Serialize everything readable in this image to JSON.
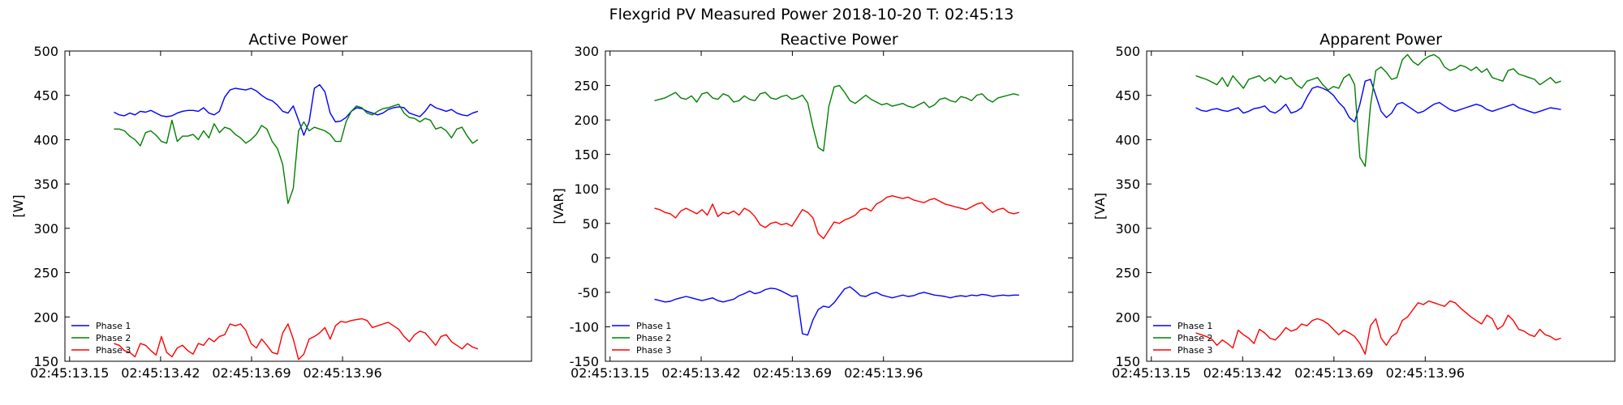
{
  "figure_title": "Flexgrid PV Measured Power 2018-10-20 T: 02:45:13",
  "chart_data": [
    {
      "type": "line",
      "title": "Active Power",
      "ylabel": "[W]",
      "xlabel": "",
      "ylim": [
        150,
        500
      ],
      "yticks": [
        150,
        200,
        250,
        300,
        350,
        400,
        450,
        500
      ],
      "xticks": [
        "02:45:13.15",
        "02:45:13.42",
        "02:45:13.69",
        "02:45:13.96"
      ],
      "grid": false,
      "legend_position": "lower-left",
      "series": [
        {
          "name": "Phase 1",
          "color": "#0000ff",
          "values": [
            431,
            428,
            427,
            430,
            428,
            432,
            431,
            433,
            430,
            427,
            426,
            427,
            430,
            432,
            433,
            433,
            432,
            436,
            430,
            428,
            432,
            448,
            456,
            458,
            457,
            456,
            458,
            455,
            450,
            446,
            444,
            439,
            432,
            430,
            438,
            422,
            405,
            420,
            458,
            462,
            454,
            430,
            420,
            421,
            425,
            432,
            436,
            435,
            432,
            430,
            428,
            430,
            434,
            436,
            437,
            436,
            430,
            428,
            426,
            432,
            440,
            436,
            434,
            432,
            434,
            430,
            428,
            427,
            430,
            432
          ]
        },
        {
          "name": "Phase 2",
          "color": "#008000",
          "values": [
            412,
            412,
            410,
            404,
            400,
            393,
            408,
            410,
            405,
            398,
            396,
            422,
            398,
            404,
            404,
            406,
            400,
            410,
            402,
            418,
            408,
            414,
            412,
            406,
            402,
            396,
            400,
            406,
            416,
            412,
            398,
            390,
            372,
            328,
            345,
            410,
            420,
            410,
            414,
            412,
            410,
            406,
            398,
            398,
            420,
            432,
            438,
            436,
            430,
            428,
            432,
            435,
            436,
            438,
            440,
            430,
            425,
            424,
            420,
            424,
            422,
            412,
            414,
            410,
            402,
            412,
            414,
            404,
            396,
            400
          ]
        },
        {
          "name": "Phase 3",
          "color": "#ff0000",
          "values": [
            170,
            168,
            162,
            160,
            155,
            170,
            168,
            162,
            157,
            178,
            160,
            155,
            165,
            168,
            162,
            158,
            170,
            168,
            176,
            172,
            178,
            180,
            192,
            190,
            192,
            185,
            170,
            165,
            175,
            168,
            160,
            158,
            182,
            192,
            175,
            152,
            158,
            175,
            178,
            182,
            188,
            175,
            190,
            195,
            194,
            196,
            197,
            198,
            196,
            188,
            190,
            192,
            194,
            190,
            186,
            178,
            172,
            180,
            184,
            182,
            175,
            168,
            178,
            180,
            172,
            168,
            164,
            170,
            166,
            164
          ]
        }
      ]
    },
    {
      "type": "line",
      "title": "Reactive Power",
      "ylabel": "[VAR]",
      "xlabel": "",
      "ylim": [
        -150,
        300
      ],
      "yticks": [
        -150,
        -100,
        -50,
        0,
        50,
        100,
        150,
        200,
        250,
        300
      ],
      "xticks": [
        "02:45:13.15",
        "02:45:13.42",
        "02:45:13.69",
        "02:45:13.96"
      ],
      "grid": false,
      "legend_position": "lower-left",
      "series": [
        {
          "name": "Phase 1",
          "color": "#0000ff",
          "values": [
            -60,
            -62,
            -64,
            -63,
            -60,
            -58,
            -56,
            -58,
            -60,
            -62,
            -60,
            -58,
            -62,
            -64,
            -62,
            -60,
            -55,
            -52,
            -48,
            -52,
            -50,
            -46,
            -44,
            -45,
            -48,
            -52,
            -56,
            -55,
            -110,
            -112,
            -90,
            -75,
            -70,
            -72,
            -65,
            -55,
            -45,
            -42,
            -48,
            -55,
            -56,
            -52,
            -50,
            -54,
            -56,
            -58,
            -56,
            -54,
            -56,
            -55,
            -52,
            -50,
            -52,
            -54,
            -55,
            -56,
            -58,
            -56,
            -55,
            -56,
            -54,
            -55,
            -53,
            -54,
            -56,
            -55,
            -54,
            -55,
            -54,
            -54
          ]
        },
        {
          "name": "Phase 2",
          "color": "#008000",
          "values": [
            228,
            230,
            232,
            236,
            240,
            232,
            230,
            235,
            226,
            238,
            240,
            232,
            230,
            238,
            235,
            226,
            228,
            235,
            230,
            228,
            238,
            240,
            232,
            230,
            234,
            236,
            230,
            232,
            236,
            225,
            190,
            160,
            155,
            220,
            248,
            250,
            240,
            228,
            224,
            230,
            236,
            230,
            226,
            222,
            224,
            220,
            222,
            224,
            220,
            218,
            222,
            226,
            218,
            222,
            230,
            232,
            228,
            226,
            234,
            232,
            228,
            236,
            238,
            230,
            226,
            232,
            234,
            236,
            238,
            236
          ]
        },
        {
          "name": "Phase 3",
          "color": "#ff0000",
          "values": [
            72,
            70,
            66,
            64,
            58,
            68,
            72,
            68,
            64,
            70,
            62,
            78,
            60,
            66,
            64,
            68,
            62,
            72,
            68,
            60,
            48,
            44,
            50,
            52,
            48,
            50,
            46,
            58,
            70,
            66,
            58,
            35,
            28,
            40,
            52,
            50,
            55,
            58,
            62,
            70,
            72,
            68,
            78,
            82,
            88,
            90,
            88,
            86,
            88,
            84,
            82,
            80,
            84,
            86,
            82,
            78,
            76,
            74,
            72,
            70,
            74,
            78,
            80,
            72,
            66,
            70,
            72,
            66,
            64,
            66
          ]
        }
      ]
    },
    {
      "type": "line",
      "title": "Apparent Power",
      "ylabel": "[VA]",
      "xlabel": "",
      "ylim": [
        150,
        500
      ],
      "yticks": [
        150,
        200,
        250,
        300,
        350,
        400,
        450,
        500
      ],
      "xticks": [
        "02:45:13.15",
        "02:45:13.42",
        "02:45:13.69",
        "02:45:13.96"
      ],
      "grid": false,
      "legend_position": "lower-left",
      "series": [
        {
          "name": "Phase 1",
          "color": "#0000ff",
          "values": [
            436,
            433,
            432,
            434,
            435,
            433,
            432,
            434,
            436,
            430,
            432,
            435,
            436,
            438,
            432,
            430,
            434,
            440,
            430,
            432,
            436,
            448,
            458,
            460,
            458,
            455,
            450,
            442,
            436,
            425,
            420,
            440,
            466,
            468,
            450,
            432,
            425,
            430,
            440,
            442,
            438,
            434,
            430,
            432,
            436,
            440,
            442,
            438,
            434,
            432,
            434,
            436,
            438,
            440,
            438,
            434,
            432,
            434,
            436,
            438,
            440,
            436,
            434,
            432,
            430,
            432,
            434,
            436,
            435,
            434
          ]
        },
        {
          "name": "Phase 2",
          "color": "#008000",
          "values": [
            472,
            470,
            468,
            465,
            462,
            470,
            460,
            472,
            465,
            458,
            468,
            470,
            472,
            466,
            470,
            464,
            472,
            468,
            470,
            462,
            458,
            466,
            468,
            470,
            462,
            456,
            460,
            458,
            470,
            474,
            462,
            380,
            370,
            438,
            478,
            482,
            476,
            468,
            470,
            490,
            496,
            488,
            484,
            490,
            494,
            496,
            492,
            482,
            478,
            480,
            484,
            482,
            478,
            482,
            476,
            480,
            470,
            468,
            466,
            478,
            480,
            474,
            472,
            470,
            468,
            462,
            466,
            470,
            464,
            466
          ]
        },
        {
          "name": "Phase 3",
          "color": "#ff0000",
          "values": [
            182,
            180,
            178,
            175,
            168,
            174,
            170,
            165,
            185,
            180,
            176,
            170,
            186,
            182,
            176,
            174,
            180,
            188,
            184,
            186,
            192,
            190,
            196,
            198,
            196,
            192,
            186,
            180,
            185,
            182,
            178,
            170,
            158,
            190,
            198,
            176,
            168,
            178,
            182,
            196,
            200,
            208,
            216,
            214,
            218,
            216,
            214,
            212,
            218,
            216,
            210,
            205,
            200,
            196,
            192,
            202,
            198,
            186,
            190,
            202,
            196,
            186,
            184,
            180,
            178,
            186,
            180,
            178,
            174,
            176
          ]
        }
      ]
    }
  ]
}
